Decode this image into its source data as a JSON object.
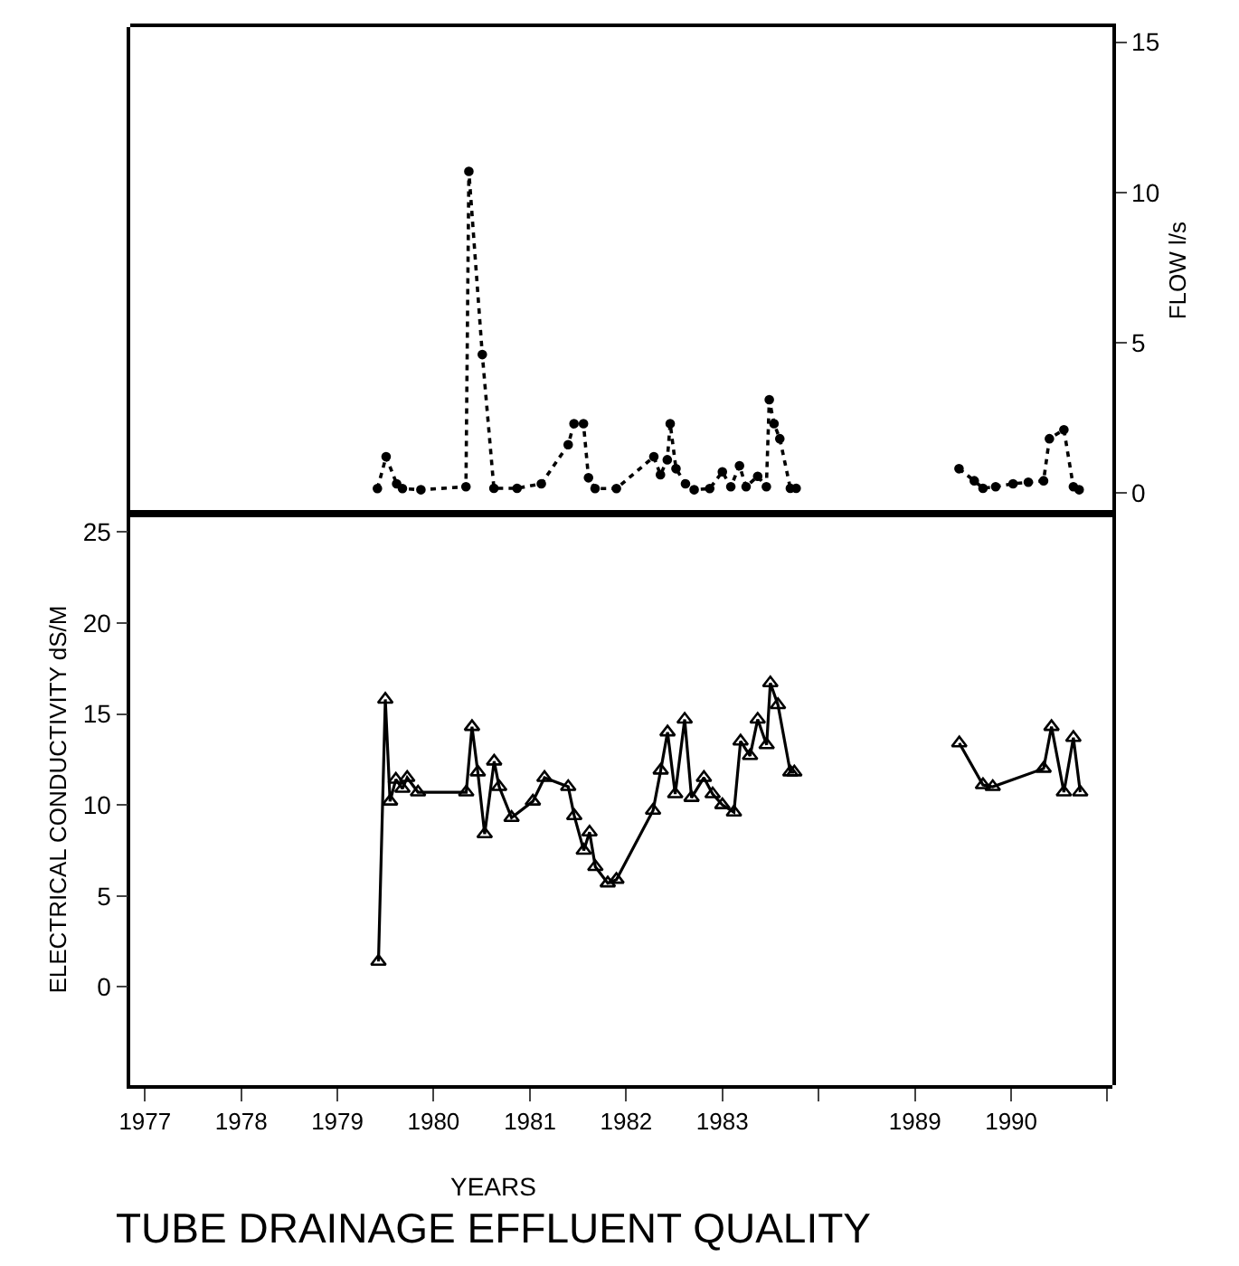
{
  "chart_data": [
    {
      "type": "line",
      "xlim": [
        "1976-11-06",
        "1984-01-01"
      ],
      "y2lim": [
        -0.7,
        15.5
      ],
      "tick_labels": false,
      "grid": false,
      "marker": "circle",
      "line_style": "dotted",
      "series": [
        {
          "color": "#000000",
          "axis": "y2",
          "x": [
            "1979-06-02",
            "1979-07-05",
            "1979-08-14",
            "1979-09-05",
            "1979-11-14",
            "1980-05-03",
            "1980-05-14",
            "1980-07-04",
            "1980-08-17",
            "1980-11-13",
            "1981-02-13",
            "1981-05-26",
            "1981-06-17",
            "1981-07-23",
            "1981-08-11",
            "1981-09-05",
            "1981-11-25",
            "1982-04-16",
            "1982-05-11",
            "1982-06-06",
            "1982-06-17",
            "1982-07-09",
            "1982-08-14",
            "1982-09-16",
            "1982-11-14",
            "1983-01-01",
            "1983-02-02",
            "1983-03-07",
            "1983-04-01",
            "1983-05-15",
            "1983-06-17",
            "1983-06-28",
            "1983-07-16",
            "1983-08-07",
            "1983-09-16",
            "1983-10-08"
          ],
          "values": [
            0.14,
            1.2,
            0.3,
            0.14,
            0.1,
            0.2,
            10.7,
            4.6,
            0.15,
            0.15,
            0.3,
            1.6,
            2.3,
            2.3,
            0.5,
            0.14,
            0.14,
            1.2,
            0.6,
            1.1,
            2.3,
            0.8,
            0.3,
            0.1,
            0.14,
            0.7,
            0.2,
            0.9,
            0.2,
            0.55,
            0.2,
            3.1,
            2.3,
            1.8,
            0.15,
            0.15
          ]
        }
      ]
    },
    {
      "type": "line",
      "y2label": "FLOW l/s",
      "xlim": [
        "1988-01-01",
        "1991-01-20"
      ],
      "y2lim": [
        -0.7,
        15.5
      ],
      "y2ticks": [
        0,
        5,
        10,
        15
      ],
      "tick_labels": "y",
      "grid": false,
      "marker": "circle",
      "line_style": "dotted",
      "series": [
        {
          "color": "#000000",
          "axis": "y2",
          "x": [
            "1989-06-17",
            "1989-08-14",
            "1989-09-16",
            "1989-11-03",
            "1990-01-08",
            "1990-03-07",
            "1990-05-04",
            "1990-05-26",
            "1990-07-20",
            "1990-08-25",
            "1990-09-16"
          ],
          "values": [
            0.8,
            0.4,
            0.15,
            0.2,
            0.3,
            0.35,
            0.4,
            1.8,
            2.1,
            0.2,
            0.1
          ]
        }
      ]
    },
    {
      "type": "line",
      "title": "TUBE DRAINAGE EFFLUENT QUALITY",
      "xlabel": "YEARS",
      "ylabel": "ELECTRICAL CONDUCTIVITY dS/M",
      "xlim": [
        "1976-11-06",
        "1984-01-01"
      ],
      "xticks": [
        "1977",
        "1978",
        "1979",
        "1980",
        "1981",
        "1982",
        "1983",
        {
          "value": "1984",
          "label": null
        }
      ],
      "ylim": [
        -5.4,
        26.0
      ],
      "yticks": [
        0,
        5,
        10,
        15,
        20,
        25
      ],
      "grid": false,
      "marker": "triangle",
      "line_style": "solid",
      "series": [
        {
          "color": "#000000",
          "x": [
            "1979-06-06",
            "1979-07-02",
            "1979-07-20",
            "1979-08-11",
            "1979-09-05",
            "1979-09-23",
            "1979-11-03",
            "1980-05-04",
            "1980-05-26",
            "1980-06-17",
            "1980-07-13",
            "1980-08-18",
            "1980-09-06",
            "1980-10-23",
            "1981-01-12",
            "1981-02-25",
            "1981-05-26",
            "1981-06-18",
            "1981-07-24",
            "1981-08-15",
            "1981-09-06",
            "1981-10-23",
            "1981-11-25",
            "1982-04-13",
            "1982-05-12",
            "1982-06-07",
            "1982-07-06",
            "1982-08-11",
            "1982-09-06",
            "1982-10-23",
            "1982-11-25",
            "1983-01-01",
            "1983-02-14",
            "1983-03-11",
            "1983-04-16",
            "1983-05-15",
            "1983-06-18",
            "1983-07-02",
            "1983-07-31",
            "1983-09-16",
            "1983-10-01"
          ],
          "values": [
            1.4,
            15.8,
            10.2,
            11.4,
            10.9,
            11.5,
            10.7,
            10.7,
            14.3,
            11.8,
            8.4,
            12.4,
            11.0,
            9.3,
            10.2,
            11.5,
            11.0,
            9.4,
            7.5,
            8.5,
            6.6,
            5.7,
            5.9,
            9.7,
            11.9,
            14.0,
            10.6,
            14.7,
            10.4,
            11.5,
            10.6,
            10.0,
            9.6,
            13.5,
            12.7,
            14.7,
            13.3,
            16.7,
            15.5,
            11.8,
            11.8
          ]
        }
      ]
    },
    {
      "type": "line",
      "xlim": [
        "1988-01-01",
        "1991-01-20"
      ],
      "xticks": [
        "1989",
        "1990",
        {
          "value": "1991",
          "label": null
        }
      ],
      "ylim": [
        -5.4,
        26.0
      ],
      "tick_labels": "x",
      "grid": false,
      "marker": "triangle",
      "line_style": "solid",
      "series": [
        {
          "color": "#000000",
          "x": [
            "1989-06-18",
            "1989-09-16",
            "1989-10-23",
            "1990-05-04",
            "1990-06-03",
            "1990-07-20",
            "1990-08-25",
            "1990-09-20"
          ],
          "values": [
            13.4,
            11.1,
            11.0,
            12.0,
            14.3,
            10.7,
            13.7,
            10.7
          ]
        }
      ]
    }
  ]
}
